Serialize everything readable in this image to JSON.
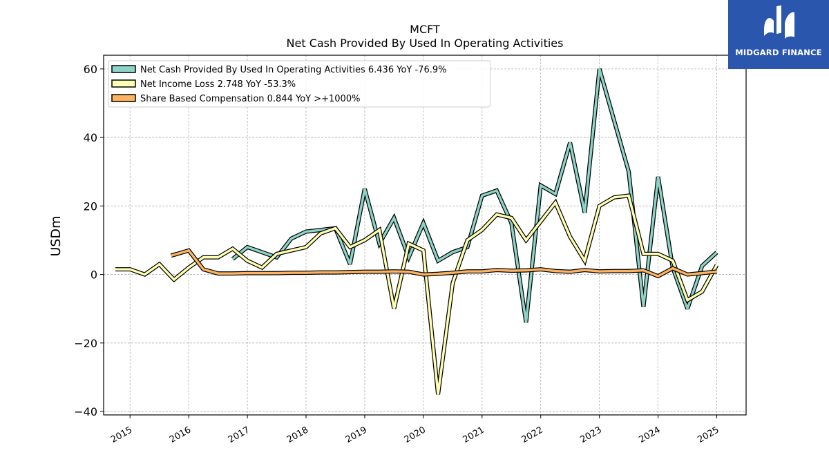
{
  "brand": {
    "logo_text": "MIDGARD FINANCE",
    "color": "#2a56ad"
  },
  "chart_data": {
    "type": "line",
    "title": "MCFT",
    "subtitle": "Net Cash Provided By Used In Operating Activities",
    "ylabel": "USDm",
    "xlabel": "",
    "ylim": [
      -41,
      64
    ],
    "xlim": [
      2014.55,
      2025.5
    ],
    "yticks": [
      -40,
      -20,
      0,
      20,
      40,
      60
    ],
    "ytick_labels": [
      "−40",
      "−20",
      "0",
      "20",
      "40",
      "60"
    ],
    "xticks": [
      2015,
      2016,
      2017,
      2018,
      2019,
      2020,
      2021,
      2022,
      2023,
      2024,
      2025
    ],
    "xtick_labels": [
      "2015",
      "2016",
      "2017",
      "2018",
      "2019",
      "2020",
      "2021",
      "2022",
      "2023",
      "2024",
      "2025"
    ],
    "grid": true,
    "legend_position": "top-left",
    "series": [
      {
        "name": "Net Cash Provided By Used In Operating Activities",
        "legend_label": "Net Cash Provided By Used In Operating Activities  6.436 YoY -76.9%",
        "color": "#8dd3c7",
        "x": [
          2016.75,
          2017.0,
          2017.25,
          2017.5,
          2017.75,
          2018.0,
          2018.25,
          2018.5,
          2018.75,
          2019.0,
          2019.25,
          2019.5,
          2019.75,
          2020.0,
          2020.25,
          2020.5,
          2020.75,
          2021.0,
          2021.25,
          2021.5,
          2021.75,
          2022.0,
          2022.25,
          2022.5,
          2022.75,
          2023.0,
          2023.25,
          2023.5,
          2023.75,
          2024.0,
          2024.25,
          2024.5,
          2024.75,
          2025.0
        ],
        "values": [
          4.5,
          8.0,
          6.5,
          5.0,
          10.5,
          12.5,
          13.0,
          13.5,
          3.0,
          25.0,
          9.0,
          16.5,
          5.0,
          15.0,
          4.0,
          6.5,
          8.0,
          23.0,
          24.5,
          15.0,
          -14.0,
          26.0,
          23.5,
          38.5,
          18.0,
          60.0,
          45.0,
          30.0,
          -9.5,
          28.5,
          2.0,
          -10.0,
          2.5,
          6.436
        ]
      },
      {
        "name": "Net Income Loss",
        "legend_label": "Net Income Loss  2.748 YoY -53.3%",
        "color": "#ffffb3",
        "x": [
          2014.75,
          2015.0,
          2015.25,
          2015.5,
          2015.75,
          2016.0,
          2016.25,
          2016.5,
          2016.75,
          2017.0,
          2017.25,
          2017.5,
          2017.75,
          2018.0,
          2018.25,
          2018.5,
          2018.75,
          2019.0,
          2019.25,
          2019.5,
          2019.75,
          2020.0,
          2020.25,
          2020.5,
          2020.75,
          2021.0,
          2021.25,
          2021.5,
          2021.75,
          2022.0,
          2022.25,
          2022.5,
          2022.75,
          2023.0,
          2023.25,
          2023.5,
          2023.75,
          2024.0,
          2024.25,
          2024.5,
          2024.75,
          2025.0
        ],
        "values": [
          1.5,
          1.5,
          0.0,
          3.0,
          -1.5,
          2.0,
          5.0,
          5.0,
          7.5,
          4.0,
          2.0,
          6.0,
          7.0,
          8.0,
          12.0,
          13.5,
          8.0,
          10.0,
          13.0,
          -10.0,
          9.0,
          7.0,
          -35.0,
          -2.5,
          10.0,
          13.0,
          17.5,
          16.5,
          10.0,
          15.5,
          21.0,
          11.0,
          4.0,
          20.0,
          22.5,
          23.0,
          6.0,
          6.0,
          4.0,
          -7.5,
          -5.0,
          2.748
        ]
      },
      {
        "name": "Share Based Compensation",
        "legend_label": "Share Based Compensation  0.844 YoY >+1000%",
        "color": "#fdb462",
        "x": [
          2015.7,
          2016.0,
          2016.25,
          2016.5,
          2016.75,
          2017.0,
          2017.25,
          2017.5,
          2017.75,
          2018.0,
          2018.25,
          2018.5,
          2018.75,
          2019.0,
          2019.25,
          2019.5,
          2019.75,
          2020.0,
          2020.25,
          2020.5,
          2020.75,
          2021.0,
          2021.25,
          2021.5,
          2021.75,
          2022.0,
          2022.25,
          2022.5,
          2022.75,
          2023.0,
          2023.25,
          2023.5,
          2023.75,
          2024.0,
          2024.25,
          2024.5,
          2024.75,
          2025.0
        ],
        "values": [
          5.5,
          7.0,
          1.5,
          0.3,
          0.3,
          0.4,
          0.4,
          0.4,
          0.5,
          0.5,
          0.6,
          0.6,
          0.7,
          0.8,
          0.8,
          0.9,
          0.8,
          0.0,
          0.2,
          0.5,
          0.9,
          0.9,
          1.3,
          1.1,
          1.2,
          1.5,
          1.0,
          0.8,
          1.3,
          0.9,
          1.0,
          1.0,
          1.2,
          -0.5,
          1.8,
          0.0,
          0.4,
          0.844
        ]
      }
    ]
  }
}
